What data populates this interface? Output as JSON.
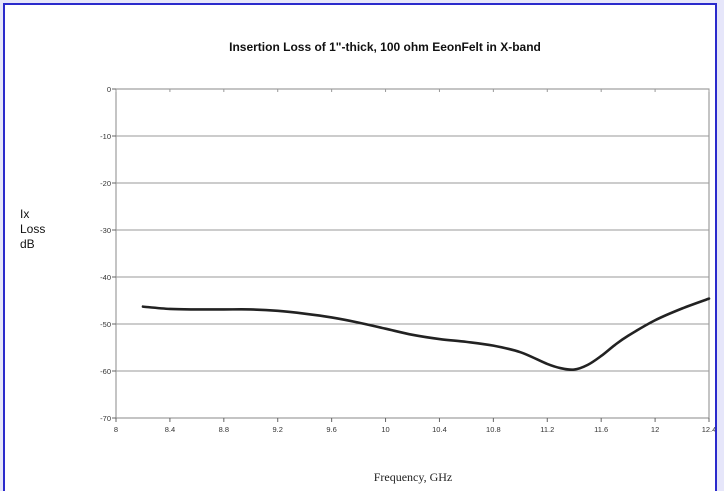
{
  "chart_data": {
    "type": "line",
    "title": "Insertion Loss of 1\"-thick, 100 ohm EeonFelt in X-band",
    "xlabel": "Frequency, GHz",
    "ylabel_lines": [
      "Ix",
      "Loss",
      "dB"
    ],
    "xlim": [
      8,
      12.4
    ],
    "ylim": [
      -70,
      0
    ],
    "x_ticks": [
      "8",
      "8.4",
      "8.8",
      "9.2",
      "9.6",
      "10",
      "10.4",
      "10.8",
      "11.2",
      "11.6",
      "12",
      "12.4"
    ],
    "y_ticks": [
      "0",
      "-10",
      "-20",
      "-30",
      "-40",
      "-50",
      "-60",
      "-70"
    ],
    "grid": "horizontal",
    "legend": "none",
    "series": [
      {
        "color": "#222222",
        "x": [
          8.2,
          8.4,
          8.6,
          8.8,
          9.0,
          9.2,
          9.4,
          9.6,
          9.8,
          10.0,
          10.2,
          10.4,
          10.6,
          10.8,
          11.0,
          11.2,
          11.3,
          11.4,
          11.5,
          11.6,
          11.7,
          11.8,
          12.0,
          12.2,
          12.4
        ],
        "y": [
          -46.3,
          -46.8,
          -46.9,
          -46.9,
          -46.9,
          -47.2,
          -47.8,
          -48.6,
          -49.7,
          -51.0,
          -52.3,
          -53.2,
          -53.8,
          -54.6,
          -56.0,
          -58.5,
          -59.4,
          -59.7,
          -58.7,
          -56.8,
          -54.5,
          -52.5,
          -49.2,
          -46.7,
          -44.6
        ]
      }
    ]
  }
}
